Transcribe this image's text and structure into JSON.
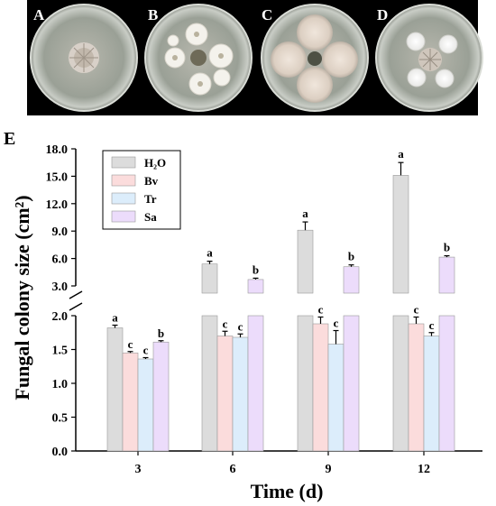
{
  "panels": [
    {
      "label": "A"
    },
    {
      "label": "B"
    },
    {
      "label": "C"
    },
    {
      "label": "D"
    }
  ],
  "chart_panel_label": "E",
  "colors": {
    "H2O": "#dcdcdc",
    "Bv": "#fbdcdc",
    "Tr": "#dcedfb",
    "Sa": "#ecdcfb",
    "photo_bg": "#000000"
  },
  "chart_data": {
    "type": "bar",
    "xlabel": "Time (d)",
    "ylabel": "Fungal colony size (cm²)",
    "categories": [
      "3",
      "6",
      "9",
      "12"
    ],
    "axis_break": {
      "lower_range": [
        0,
        2.0
      ],
      "upper_range": [
        3.0,
        18.0
      ]
    },
    "lower_ticks": [
      "0.0",
      "0.5",
      "1.0",
      "1.5",
      "2.0"
    ],
    "upper_ticks": [
      "3.0",
      "6.0",
      "9.0",
      "12.0",
      "15.0",
      "18.0"
    ],
    "legend_position": "top-left",
    "series": [
      {
        "name": "H₂O",
        "values": [
          1.82,
          5.4,
          9.1,
          15.1
        ],
        "errors": [
          0.04,
          0.3,
          0.9,
          1.4
        ],
        "letters": [
          "a",
          "a",
          "a",
          "a"
        ]
      },
      {
        "name": "Bv",
        "values": [
          1.45,
          1.7,
          1.88,
          1.88
        ],
        "errors": [
          0.02,
          0.07,
          0.1,
          0.1
        ],
        "letters": [
          "c",
          "c",
          "c",
          "c"
        ]
      },
      {
        "name": "Tr",
        "values": [
          1.36,
          1.68,
          1.58,
          1.7
        ],
        "errors": [
          0.02,
          0.05,
          0.2,
          0.05
        ],
        "letters": [
          "c",
          "c",
          "c",
          "c"
        ]
      },
      {
        "name": "Sa",
        "values": [
          1.61,
          3.7,
          5.1,
          6.15
        ],
        "errors": [
          0.02,
          0.15,
          0.2,
          0.15
        ],
        "letters": [
          "b",
          "b",
          "b",
          "b"
        ]
      }
    ]
  }
}
